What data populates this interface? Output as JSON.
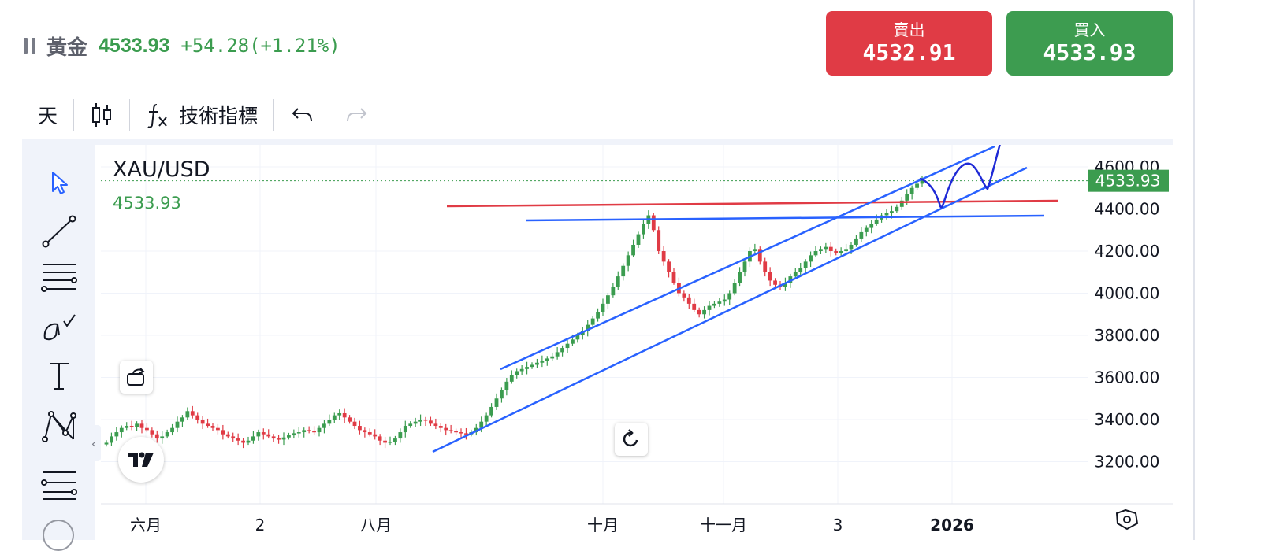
{
  "header": {
    "symbol_name": "黃金",
    "price": "4533.93",
    "change": "+54.28(+1.21%)"
  },
  "trade": {
    "sell_label": "賣出",
    "sell_price": "4532.91",
    "buy_label": "買入",
    "buy_price": "4533.93"
  },
  "toolbar": {
    "interval": "天",
    "indicators_label": "技術指標"
  },
  "chart": {
    "symbol": "XAU/USD",
    "last_price": "4533.93",
    "price_tag": "4533.93",
    "colors": {
      "up": "#3b9c4f",
      "down": "#e03b45",
      "trend": "#2962ff",
      "resistance": "#e03b45"
    }
  },
  "chart_data": {
    "type": "candlestick",
    "x_tick_labels": [
      "六月",
      "2",
      "八月",
      "十月",
      "十一月",
      "3",
      "2026"
    ],
    "y_tick_labels": [
      "4600.00",
      "4400.00",
      "4200.00",
      "4000.00",
      "3800.00",
      "3600.00",
      "3400.00",
      "3200.00"
    ],
    "ylim": [
      3100,
      4700
    ],
    "last_value": 4533.93,
    "path_closes": [
      3290,
      3320,
      3340,
      3360,
      3370,
      3365,
      3380,
      3360,
      3350,
      3330,
      3310,
      3320,
      3340,
      3360,
      3390,
      3410,
      3440,
      3420,
      3400,
      3380,
      3370,
      3360,
      3350,
      3330,
      3320,
      3310,
      3300,
      3290,
      3300,
      3320,
      3340,
      3330,
      3320,
      3310,
      3305,
      3315,
      3325,
      3335,
      3340,
      3350,
      3345,
      3340,
      3360,
      3380,
      3400,
      3420,
      3430,
      3410,
      3390,
      3370,
      3350,
      3340,
      3330,
      3320,
      3300,
      3290,
      3295,
      3310,
      3340,
      3370,
      3380,
      3390,
      3400,
      3395,
      3380,
      3370,
      3360,
      3350,
      3345,
      3340,
      3335,
      3330,
      3340,
      3360,
      3390,
      3420,
      3460,
      3500,
      3540,
      3580,
      3610,
      3630,
      3640,
      3650,
      3660,
      3670,
      3680,
      3690,
      3700,
      3720,
      3740,
      3760,
      3780,
      3800,
      3820,
      3850,
      3880,
      3910,
      3950,
      3990,
      4030,
      4080,
      4130,
      4180,
      4230,
      4280,
      4330,
      4370,
      4300,
      4200,
      4150,
      4100,
      4050,
      4000,
      3980,
      3950,
      3920,
      3900,
      3920,
      3940,
      3950,
      3960,
      3970,
      4000,
      4050,
      4100,
      4150,
      4200,
      4210,
      4150,
      4100,
      4060,
      4040,
      4030,
      4050,
      4080,
      4100,
      4120,
      4150,
      4180,
      4200,
      4210,
      4220,
      4200,
      4190,
      4200,
      4210,
      4230,
      4260,
      4290,
      4310,
      4330,
      4350,
      4370,
      4380,
      4390,
      4410,
      4440,
      4470,
      4500,
      4520,
      4533.93
    ]
  }
}
